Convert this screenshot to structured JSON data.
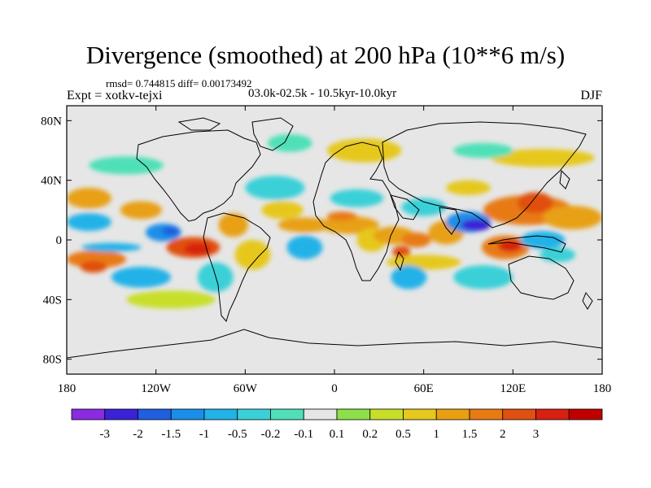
{
  "header": {
    "title": "Divergence (smoothed) at 200 hPa (10**6 m/s)",
    "stats": "rmsd= 0.744815 diff= 0.00173492",
    "expt": "Expt = xotkv-tejxi",
    "period": "03.0k-02.5k - 10.5kyr-10.0kyr",
    "season": "DJF"
  },
  "map": {
    "lon_range": [
      -180,
      180
    ],
    "lat_range": [
      -90,
      90
    ],
    "x_ticks": [
      {
        "lon": -180,
        "label": "180"
      },
      {
        "lon": -120,
        "label": "120W"
      },
      {
        "lon": -60,
        "label": "60W"
      },
      {
        "lon": 0,
        "label": "0"
      },
      {
        "lon": 60,
        "label": "60E"
      },
      {
        "lon": 120,
        "label": "120E"
      },
      {
        "lon": 180,
        "label": "180"
      }
    ],
    "y_ticks": [
      {
        "lat": 80,
        "label": "80N"
      },
      {
        "lat": 40,
        "label": "40N"
      },
      {
        "lat": 0,
        "label": "0"
      },
      {
        "lat": -40,
        "label": "40S"
      },
      {
        "lat": -80,
        "label": "80S"
      }
    ],
    "background_color": "#e6e6e6",
    "coast_color": "#000000",
    "divergence_blobs": [
      {
        "lon": -160,
        "lat": -13,
        "rx": 20,
        "ry": 6,
        "level": 1.5
      },
      {
        "lon": -162,
        "lat": -18,
        "rx": 9,
        "ry": 4,
        "level": 2
      },
      {
        "lon": -130,
        "lat": 20,
        "rx": 14,
        "ry": 6,
        "level": 1
      },
      {
        "lon": -165,
        "lat": 28,
        "rx": 15,
        "ry": 7,
        "level": 1
      },
      {
        "lon": -95,
        "lat": -5,
        "rx": 18,
        "ry": 7,
        "level": 2
      },
      {
        "lon": -92,
        "lat": -6,
        "rx": 9,
        "ry": 4,
        "level": 3
      },
      {
        "lon": -68,
        "lat": 10,
        "rx": 10,
        "ry": 8,
        "level": 1
      },
      {
        "lon": -55,
        "lat": -10,
        "rx": 12,
        "ry": 10,
        "level": 0.5
      },
      {
        "lon": -35,
        "lat": 20,
        "rx": 14,
        "ry": 6,
        "level": 0.5
      },
      {
        "lon": -20,
        "lat": 10,
        "rx": 18,
        "ry": 5,
        "level": 1
      },
      {
        "lon": 10,
        "lat": 10,
        "rx": 20,
        "ry": 6,
        "level": 1
      },
      {
        "lon": 5,
        "lat": 16,
        "rx": 10,
        "ry": 3,
        "level": 1.5
      },
      {
        "lon": 25,
        "lat": 0,
        "rx": 10,
        "ry": 8,
        "level": 0.5
      },
      {
        "lon": 40,
        "lat": 3,
        "rx": 14,
        "ry": 6,
        "level": 1
      },
      {
        "lon": 55,
        "lat": 0,
        "rx": 10,
        "ry": 5,
        "level": 1.5
      },
      {
        "lon": 45,
        "lat": -8,
        "rx": 6,
        "ry": 4,
        "level": 2
      },
      {
        "lon": 75,
        "lat": 5,
        "rx": 12,
        "ry": 8,
        "level": 1
      },
      {
        "lon": 90,
        "lat": 35,
        "rx": 15,
        "ry": 5,
        "level": 0.5
      },
      {
        "lon": 130,
        "lat": 20,
        "rx": 30,
        "ry": 10,
        "level": 1.5
      },
      {
        "lon": 135,
        "lat": 25,
        "rx": 12,
        "ry": 7,
        "level": 2
      },
      {
        "lon": 115,
        "lat": -5,
        "rx": 16,
        "ry": 8,
        "level": 1.5
      },
      {
        "lon": 118,
        "lat": -4,
        "rx": 8,
        "ry": 4,
        "level": 3
      },
      {
        "lon": 160,
        "lat": 15,
        "rx": 20,
        "ry": 8,
        "level": 1
      },
      {
        "lon": 60,
        "lat": -15,
        "rx": 25,
        "ry": 5,
        "level": 0.5
      },
      {
        "lon": -110,
        "lat": -40,
        "rx": 30,
        "ry": 6,
        "level": 0.2
      },
      {
        "lon": 20,
        "lat": 60,
        "rx": 25,
        "ry": 8,
        "level": 0.5
      },
      {
        "lon": 140,
        "lat": 55,
        "rx": 35,
        "ry": 6,
        "level": 0.5
      },
      {
        "lon": -150,
        "lat": -5,
        "rx": 20,
        "ry": 3,
        "level": -1
      },
      {
        "lon": -165,
        "lat": 12,
        "rx": 15,
        "ry": 6,
        "level": -1
      },
      {
        "lon": -130,
        "lat": -25,
        "rx": 20,
        "ry": 7,
        "level": -1
      },
      {
        "lon": -115,
        "lat": 5,
        "rx": 12,
        "ry": 6,
        "level": -1.5
      },
      {
        "lon": -110,
        "lat": 6,
        "rx": 6,
        "ry": 3,
        "level": -2
      },
      {
        "lon": -80,
        "lat": -25,
        "rx": 12,
        "ry": 10,
        "level": -0.5
      },
      {
        "lon": -20,
        "lat": -5,
        "rx": 12,
        "ry": 8,
        "level": -1
      },
      {
        "lon": -40,
        "lat": 35,
        "rx": 20,
        "ry": 8,
        "level": -0.5
      },
      {
        "lon": 15,
        "lat": 28,
        "rx": 18,
        "ry": 6,
        "level": -0.5
      },
      {
        "lon": 60,
        "lat": 22,
        "rx": 15,
        "ry": 6,
        "level": -0.5
      },
      {
        "lon": 50,
        "lat": -25,
        "rx": 12,
        "ry": 8,
        "level": -1
      },
      {
        "lon": 90,
        "lat": 12,
        "rx": 15,
        "ry": 7,
        "level": -1.5
      },
      {
        "lon": 95,
        "lat": 10,
        "rx": 10,
        "ry": 4,
        "level": -3
      },
      {
        "lon": 100,
        "lat": -25,
        "rx": 20,
        "ry": 8,
        "level": -0.5
      },
      {
        "lon": 140,
        "lat": 0,
        "rx": 15,
        "ry": 6,
        "level": -1
      },
      {
        "lon": 150,
        "lat": -10,
        "rx": 12,
        "ry": 5,
        "level": -0.5
      },
      {
        "lon": -140,
        "lat": 50,
        "rx": 25,
        "ry": 6,
        "level": -0.2
      },
      {
        "lon": -30,
        "lat": 65,
        "rx": 15,
        "ry": 6,
        "level": -0.2
      },
      {
        "lon": 100,
        "lat": 60,
        "rx": 20,
        "ry": 5,
        "level": -0.2
      }
    ]
  },
  "colorbar": {
    "colors": [
      "#8a2be2",
      "#3a22d6",
      "#1f5fe0",
      "#1a8ee8",
      "#21b2e8",
      "#3ad0d8",
      "#4fe0b8",
      "#e6e6e6",
      "#8de04a",
      "#c8df2a",
      "#e6c81e",
      "#e8a012",
      "#e87a12",
      "#e05010",
      "#d82010",
      "#c00000"
    ],
    "labels": [
      "-3",
      "-2",
      "-1.5",
      "-1",
      "-0.5",
      "-0.2",
      "-0.1",
      "0.1",
      "0.2",
      "0.5",
      "1",
      "1.5",
      "2",
      "3"
    ],
    "levels": [
      -3,
      -2,
      -1.5,
      -1,
      -0.5,
      -0.2,
      -0.1,
      0.1,
      0.2,
      0.5,
      1,
      1.5,
      2,
      3
    ]
  }
}
